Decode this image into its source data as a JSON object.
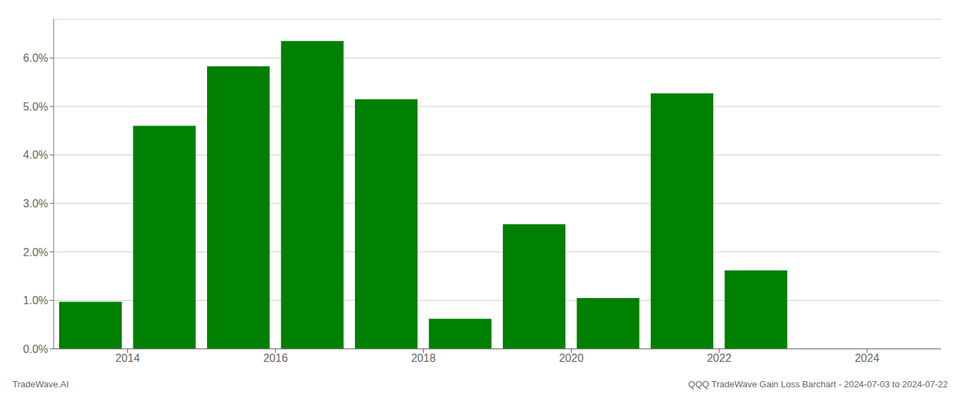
{
  "chart_data": {
    "type": "bar",
    "x": [
      2013.5,
      2014.5,
      2015.5,
      2016.5,
      2017.5,
      2018.5,
      2019.5,
      2020.5,
      2021.5,
      2022.5,
      2023.5
    ],
    "values": [
      0.0097,
      0.046,
      0.0583,
      0.0635,
      0.0515,
      0.0062,
      0.0257,
      0.0105,
      0.0527,
      0.0162,
      0.0
    ],
    "color": "#008000",
    "xlim": [
      2013.0,
      2025.0
    ],
    "xticks": [
      2014,
      2016,
      2018,
      2020,
      2022,
      2024
    ],
    "ylim": [
      0,
      0.068
    ],
    "yticks": [
      {
        "value": 0.0,
        "label": "0.0%"
      },
      {
        "value": 0.01,
        "label": "1.0%"
      },
      {
        "value": 0.02,
        "label": "2.0%"
      },
      {
        "value": 0.03,
        "label": "3.0%"
      },
      {
        "value": 0.04,
        "label": "4.0%"
      },
      {
        "value": 0.05,
        "label": "5.0%"
      },
      {
        "value": 0.06,
        "label": "6.0%"
      }
    ],
    "grid": true,
    "annotations": [
      "TradeWave.AI",
      "QQQ TradeWave Gain Loss Barchart - 2024-07-03 to 2024-07-22"
    ]
  }
}
